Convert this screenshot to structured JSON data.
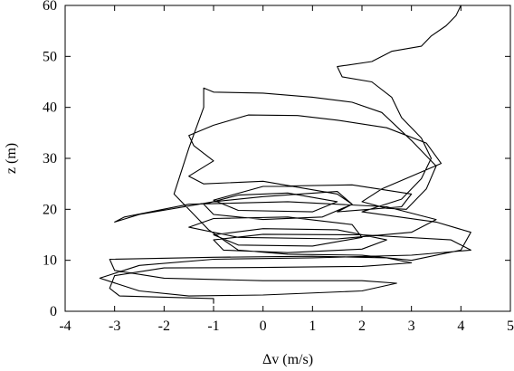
{
  "chart_data": {
    "type": "line",
    "title": "",
    "xlabel": "Δv (m/s)",
    "ylabel": "z (m)",
    "xlim": [
      -4,
      5
    ],
    "ylim": [
      0,
      60
    ],
    "xticks": [
      -4,
      -3,
      -2,
      -1,
      0,
      1,
      2,
      3,
      4,
      5
    ],
    "yticks": [
      0,
      10,
      20,
      30,
      40,
      50,
      60
    ],
    "xtick_labels": [
      "-4",
      "-3",
      "-2",
      "-1",
      "0",
      "1",
      "2",
      "3",
      "4",
      "5"
    ],
    "ytick_labels": [
      "0",
      "10",
      "20",
      "30",
      "40",
      "50",
      "60"
    ],
    "grid": false,
    "legend": "none",
    "series": [
      {
        "color": "#000000",
        "points": [
          [
            -1.0,
            1.5
          ],
          [
            -1.0,
            2.5
          ],
          [
            -2.9,
            3.0
          ],
          [
            -3.1,
            4.5
          ],
          [
            -3.0,
            7.0
          ],
          [
            -2.0,
            8.5
          ],
          [
            0.0,
            8.6
          ],
          [
            2.0,
            8.8
          ],
          [
            3.0,
            9.5
          ],
          [
            2.5,
            10.5
          ],
          [
            1.0,
            10.8
          ],
          [
            -1.0,
            10.6
          ],
          [
            -3.1,
            10.2
          ],
          [
            -3.0,
            8.0
          ],
          [
            -2.0,
            6.5
          ],
          [
            0.0,
            6.0
          ],
          [
            2.0,
            6.0
          ],
          [
            2.7,
            5.5
          ],
          [
            2.0,
            4.0
          ],
          [
            0.0,
            3.2
          ],
          [
            -1.5,
            3.0
          ],
          [
            -2.5,
            4.0
          ],
          [
            -3.3,
            6.5
          ],
          [
            -2.5,
            9.0
          ],
          [
            -1.0,
            10.2
          ],
          [
            1.0,
            10.5
          ],
          [
            3.0,
            11.0
          ],
          [
            4.2,
            12.0
          ],
          [
            3.8,
            14.0
          ],
          [
            2.0,
            15.0
          ],
          [
            0.0,
            15.1
          ],
          [
            -1.0,
            14.0
          ],
          [
            -0.8,
            12.0
          ],
          [
            0.5,
            11.5
          ],
          [
            2.0,
            12.2
          ],
          [
            2.5,
            14.0
          ],
          [
            1.5,
            16.0
          ],
          [
            0.0,
            16.2
          ],
          [
            -1.0,
            15.0
          ],
          [
            -0.5,
            13.0
          ],
          [
            1.0,
            12.8
          ],
          [
            2.0,
            14.5
          ],
          [
            1.8,
            17.0
          ],
          [
            0.5,
            18.5
          ],
          [
            -1.0,
            18.2
          ],
          [
            -1.5,
            16.5
          ],
          [
            -0.5,
            14.5
          ],
          [
            1.5,
            14.2
          ],
          [
            3.0,
            15.5
          ],
          [
            3.5,
            18.0
          ],
          [
            2.5,
            20.5
          ],
          [
            0.5,
            21.5
          ],
          [
            -1.5,
            21.0
          ],
          [
            -2.8,
            18.5
          ],
          [
            -3.0,
            17.5
          ],
          [
            -2.5,
            19.0
          ],
          [
            -1.0,
            21.5
          ],
          [
            0.0,
            22.5
          ],
          [
            1.5,
            23.5
          ],
          [
            1.8,
            21.0
          ],
          [
            1.2,
            18.5
          ],
          [
            0.0,
            18.0
          ],
          [
            -1.0,
            19.0
          ],
          [
            -1.2,
            21.0
          ],
          [
            -0.5,
            22.8
          ],
          [
            0.5,
            23.2
          ],
          [
            1.5,
            21.5
          ],
          [
            1.0,
            19.5
          ],
          [
            -0.5,
            19.8
          ],
          [
            -1.0,
            21.8
          ],
          [
            0.0,
            24.5
          ],
          [
            1.8,
            24.8
          ],
          [
            3.0,
            23.0
          ],
          [
            2.8,
            20.5
          ],
          [
            1.5,
            19.5
          ],
          [
            1.8,
            21.0
          ],
          [
            1.5,
            23.0
          ],
          [
            0.0,
            25.5
          ],
          [
            -1.2,
            25.0
          ],
          [
            -1.5,
            26.5
          ],
          [
            -1.0,
            29.5
          ],
          [
            -1.4,
            32.5
          ],
          [
            -1.5,
            34.5
          ],
          [
            -1.0,
            36.5
          ],
          [
            -0.3,
            38.5
          ],
          [
            0.7,
            38.4
          ],
          [
            1.5,
            37.5
          ],
          [
            2.5,
            36.0
          ],
          [
            3.3,
            33.0
          ],
          [
            3.6,
            29.0
          ],
          [
            3.0,
            26.5
          ],
          [
            2.4,
            24.0
          ],
          [
            2.0,
            21.5
          ],
          [
            2.5,
            20.2
          ],
          [
            2.9,
            20.0
          ],
          [
            3.3,
            24.0
          ],
          [
            3.5,
            28.5
          ],
          [
            3.0,
            33.5
          ],
          [
            2.4,
            39.0
          ],
          [
            1.8,
            41.0
          ],
          [
            1.0,
            42.0
          ],
          [
            0.0,
            42.8
          ],
          [
            -1.0,
            43.0
          ],
          [
            -1.2,
            43.8
          ],
          [
            -1.2,
            40.0
          ],
          [
            -1.5,
            32.0
          ],
          [
            -1.8,
            23.0
          ],
          [
            -1.1,
            16.0
          ],
          [
            -0.5,
            12.0
          ],
          [
            0.5,
            11.2
          ],
          [
            2.0,
            11.0
          ],
          [
            3.0,
            10.0
          ],
          [
            4.0,
            12.0
          ],
          [
            4.2,
            15.5
          ],
          [
            3.5,
            17.5
          ],
          [
            2.0,
            19.5
          ],
          [
            2.8,
            22.0
          ],
          [
            3.2,
            26.0
          ],
          [
            3.4,
            30.0
          ],
          [
            3.2,
            34.0
          ],
          [
            2.8,
            38.0
          ],
          [
            2.6,
            42.0
          ],
          [
            2.2,
            45.0
          ],
          [
            1.6,
            46.0
          ],
          [
            1.5,
            48.0
          ],
          [
            2.2,
            49.0
          ],
          [
            2.6,
            51.0
          ],
          [
            3.2,
            52.0
          ],
          [
            3.4,
            54.0
          ],
          [
            3.7,
            56.0
          ],
          [
            3.9,
            58.0
          ],
          [
            4.0,
            60.0
          ]
        ]
      }
    ]
  }
}
